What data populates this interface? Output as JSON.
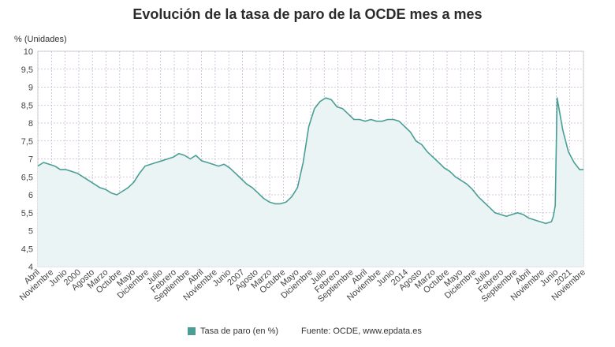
{
  "chart_data": {
    "type": "area",
    "title": "Evolución de la tasa de paro de la OCDE mes a mes",
    "ylabel": "% (Unidades)",
    "xlabel": "",
    "ylim": [
      4,
      10
    ],
    "yticks": [
      "4",
      "4,5",
      "5",
      "5,5",
      "6",
      "6,5",
      "7",
      "7,5",
      "8",
      "8,5",
      "9",
      "9,5",
      "10"
    ],
    "xticks": [
      "Abril",
      "Noviembre",
      "Junio",
      "2000",
      "Agosto",
      "Marzo",
      "Octubre",
      "Mayo",
      "Diciembre",
      "Julio",
      "Febrero",
      "Septiembre",
      "Abril",
      "Noviembre",
      "Junio",
      "2007",
      "Agosto",
      "Marzo",
      "Octubre",
      "Mayo",
      "Diciembre",
      "Julio",
      "Febrero",
      "Septiembre",
      "Abril",
      "Noviembre",
      "Junio",
      "2014",
      "Agosto",
      "Marzo",
      "Octubre",
      "Mayo",
      "Diciembre",
      "Julio",
      "Febrero",
      "Septiembre",
      "Abril",
      "Noviembre",
      "Junio",
      "2021",
      "Noviembre"
    ],
    "x_range": [
      "1997-04",
      "2021-06"
    ],
    "grid": true,
    "legend_position": "bottom",
    "color": "#4a9e96",
    "fill_color": "#eaf4f5",
    "series": [
      {
        "name": "Tasa de paro (en %)",
        "points": [
          [
            "1997-04",
            6.8
          ],
          [
            "1997-07",
            6.9
          ],
          [
            "1997-10",
            6.85
          ],
          [
            "1998-01",
            6.8
          ],
          [
            "1998-04",
            6.7
          ],
          [
            "1998-07",
            6.7
          ],
          [
            "1998-10",
            6.65
          ],
          [
            "1999-01",
            6.6
          ],
          [
            "1999-04",
            6.5
          ],
          [
            "1999-07",
            6.4
          ],
          [
            "1999-10",
            6.3
          ],
          [
            "2000-01",
            6.2
          ],
          [
            "2000-04",
            6.15
          ],
          [
            "2000-07",
            6.05
          ],
          [
            "2000-10",
            6.0
          ],
          [
            "2001-01",
            6.1
          ],
          [
            "2001-04",
            6.2
          ],
          [
            "2001-07",
            6.35
          ],
          [
            "2001-10",
            6.6
          ],
          [
            "2002-01",
            6.8
          ],
          [
            "2002-04",
            6.85
          ],
          [
            "2002-07",
            6.9
          ],
          [
            "2002-10",
            6.95
          ],
          [
            "2003-01",
            7.0
          ],
          [
            "2003-04",
            7.05
          ],
          [
            "2003-07",
            7.15
          ],
          [
            "2003-10",
            7.1
          ],
          [
            "2004-01",
            7.0
          ],
          [
            "2004-04",
            7.1
          ],
          [
            "2004-07",
            6.95
          ],
          [
            "2004-10",
            6.9
          ],
          [
            "2005-01",
            6.85
          ],
          [
            "2005-04",
            6.8
          ],
          [
            "2005-07",
            6.85
          ],
          [
            "2005-10",
            6.75
          ],
          [
            "2006-01",
            6.6
          ],
          [
            "2006-04",
            6.45
          ],
          [
            "2006-07",
            6.3
          ],
          [
            "2006-10",
            6.2
          ],
          [
            "2007-01",
            6.05
          ],
          [
            "2007-04",
            5.9
          ],
          [
            "2007-07",
            5.8
          ],
          [
            "2007-10",
            5.75
          ],
          [
            "2008-01",
            5.75
          ],
          [
            "2008-04",
            5.8
          ],
          [
            "2008-07",
            5.95
          ],
          [
            "2008-10",
            6.2
          ],
          [
            "2009-01",
            6.9
          ],
          [
            "2009-04",
            7.9
          ],
          [
            "2009-07",
            8.4
          ],
          [
            "2009-10",
            8.6
          ],
          [
            "2010-01",
            8.7
          ],
          [
            "2010-04",
            8.65
          ],
          [
            "2010-07",
            8.45
          ],
          [
            "2010-10",
            8.4
          ],
          [
            "2011-01",
            8.25
          ],
          [
            "2011-04",
            8.1
          ],
          [
            "2011-07",
            8.1
          ],
          [
            "2011-10",
            8.05
          ],
          [
            "2012-01",
            8.1
          ],
          [
            "2012-04",
            8.05
          ],
          [
            "2012-07",
            8.05
          ],
          [
            "2012-10",
            8.1
          ],
          [
            "2013-01",
            8.1
          ],
          [
            "2013-04",
            8.05
          ],
          [
            "2013-07",
            7.9
          ],
          [
            "2013-10",
            7.75
          ],
          [
            "2014-01",
            7.5
          ],
          [
            "2014-04",
            7.4
          ],
          [
            "2014-07",
            7.2
          ],
          [
            "2014-10",
            7.05
          ],
          [
            "2015-01",
            6.9
          ],
          [
            "2015-04",
            6.75
          ],
          [
            "2015-07",
            6.65
          ],
          [
            "2015-10",
            6.5
          ],
          [
            "2016-01",
            6.4
          ],
          [
            "2016-04",
            6.3
          ],
          [
            "2016-07",
            6.15
          ],
          [
            "2016-10",
            5.95
          ],
          [
            "2017-01",
            5.8
          ],
          [
            "2017-04",
            5.65
          ],
          [
            "2017-07",
            5.5
          ],
          [
            "2017-10",
            5.45
          ],
          [
            "2018-01",
            5.4
          ],
          [
            "2018-04",
            5.45
          ],
          [
            "2018-07",
            5.5
          ],
          [
            "2018-10",
            5.45
          ],
          [
            "2019-01",
            5.35
          ],
          [
            "2019-04",
            5.3
          ],
          [
            "2019-07",
            5.25
          ],
          [
            "2019-10",
            5.2
          ],
          [
            "2020-01",
            5.25
          ],
          [
            "2020-02",
            5.4
          ],
          [
            "2020-03",
            5.7
          ],
          [
            "2020-04",
            8.7
          ],
          [
            "2020-05",
            8.4
          ],
          [
            "2020-07",
            7.8
          ],
          [
            "2020-10",
            7.2
          ],
          [
            "2021-01",
            6.9
          ],
          [
            "2021-04",
            6.7
          ],
          [
            "2021-06",
            6.7
          ]
        ]
      }
    ]
  },
  "legend": {
    "label": "Tasa de paro (en %)"
  },
  "source": {
    "text": "Fuente: OCDE, www.epdata.es"
  }
}
